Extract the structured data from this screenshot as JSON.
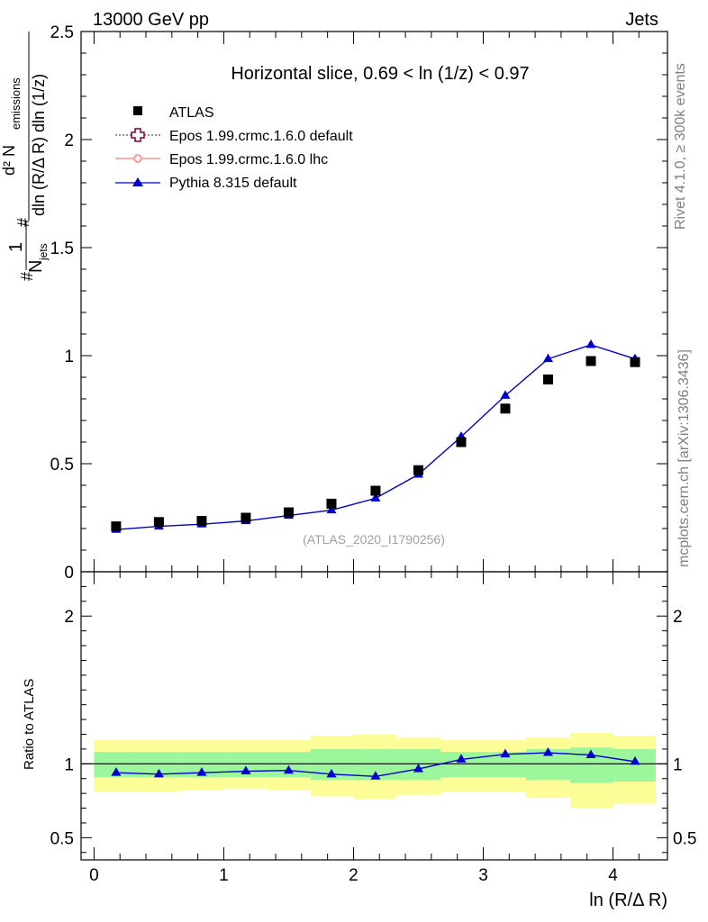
{
  "header": {
    "left": "13000 GeV pp",
    "right": "Jets"
  },
  "side_labels": {
    "rivet": "Rivet 4.1.0, ≥ 300k events",
    "mcplots": "mcplots.cern.ch [arXiv:1306.3436]"
  },
  "y_axis_title": {
    "prefix_hash": "#",
    "one": "1",
    "n_jets": "N",
    "n_jets_sub": "jets",
    "hash2": "#",
    "numerator": "d² N",
    "numerator_sub": "emissions",
    "denominator": "dln (R/Δ R) dln (1/z)"
  },
  "ratio_y_title": "Ratio to ATLAS",
  "x_axis_title": "ln (R/Δ R)",
  "colors": {
    "data": "#000000",
    "epos_default": "#7f0034",
    "epos_lhc": "#f08080",
    "pythia": "#0000cc",
    "band_inner": "#9cf79c",
    "band_outer": "#fdfd97"
  },
  "chart_data": [
    {
      "type": "scatter",
      "panel": "main",
      "title": "Horizontal slice, 0.69 < ln (1/z) < 0.97",
      "watermark": "(ATLAS_2020_I1790256)",
      "xlim": [
        -0.1,
        4.42
      ],
      "ylim": [
        0,
        2.5
      ],
      "y_ticks": [
        0,
        0.5,
        1,
        1.5,
        2,
        2.5
      ],
      "y_tick_labels": [
        "0",
        "0.5",
        "1",
        "1.5",
        "2",
        "2.5"
      ],
      "x_ticks": [
        0,
        1,
        2,
        3,
        4
      ],
      "legend_position": "top-left",
      "legend": [
        "ATLAS",
        "Epos 1.99.crmc.1.6.0 default",
        "Epos 1.99.crmc.1.6.0 lhc",
        "Pythia 8.315 default"
      ],
      "x": [
        0.17,
        0.5,
        0.83,
        1.17,
        1.5,
        1.83,
        2.17,
        2.5,
        2.83,
        3.17,
        3.5,
        3.83,
        4.17
      ],
      "series": [
        {
          "name": "ATLAS",
          "style": "square",
          "values": [
            0.21,
            0.23,
            0.235,
            0.25,
            0.275,
            0.315,
            0.375,
            0.47,
            0.6,
            0.755,
            0.89,
            0.975,
            0.97
          ]
        },
        {
          "name": "Pythia 8.315 default",
          "style": "line-triangle",
          "values": [
            0.195,
            0.21,
            0.22,
            0.235,
            0.26,
            0.285,
            0.34,
            0.45,
            0.625,
            0.815,
            0.985,
            1.05,
            0.985
          ]
        }
      ]
    },
    {
      "type": "line",
      "panel": "ratio",
      "xlim": [
        -0.1,
        4.42
      ],
      "ylim": [
        0.35,
        2.3
      ],
      "y_ticks": [
        0.5,
        1,
        2
      ],
      "y_tick_labels": [
        "0.5",
        "1",
        "2"
      ],
      "x_ticks": [
        0,
        1,
        2,
        3,
        4
      ],
      "x_tick_labels": [
        "0",
        "1",
        "2",
        "3",
        "4"
      ],
      "bin_edges": [
        0,
        0.33,
        0.67,
        1.0,
        1.33,
        1.67,
        2.0,
        2.33,
        2.67,
        3.0,
        3.33,
        3.67,
        4.0,
        4.33
      ],
      "band_inner_low": [
        0.91,
        0.91,
        0.91,
        0.91,
        0.91,
        0.89,
        0.89,
        0.89,
        0.91,
        0.91,
        0.89,
        0.87,
        0.88
      ],
      "band_inner_high": [
        1.08,
        1.08,
        1.08,
        1.08,
        1.08,
        1.1,
        1.1,
        1.1,
        1.08,
        1.08,
        1.1,
        1.11,
        1.1
      ],
      "band_outer_low": [
        0.81,
        0.81,
        0.82,
        0.83,
        0.82,
        0.78,
        0.76,
        0.79,
        0.81,
        0.81,
        0.77,
        0.7,
        0.73
      ],
      "band_outer_high": [
        1.16,
        1.16,
        1.16,
        1.16,
        1.16,
        1.19,
        1.2,
        1.18,
        1.16,
        1.16,
        1.18,
        1.21,
        1.19
      ],
      "x": [
        0.17,
        0.5,
        0.83,
        1.17,
        1.5,
        1.83,
        2.17,
        2.5,
        2.83,
        3.17,
        3.5,
        3.83,
        4.17
      ],
      "series": [
        {
          "name": "Pythia 8.315 default",
          "values": [
            0.94,
            0.93,
            0.94,
            0.95,
            0.955,
            0.93,
            0.915,
            0.965,
            1.03,
            1.065,
            1.075,
            1.06,
            1.015
          ]
        }
      ]
    }
  ]
}
